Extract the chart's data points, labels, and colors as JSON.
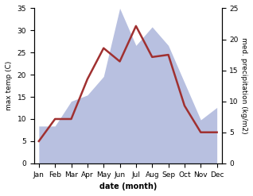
{
  "months": [
    "Jan",
    "Feb",
    "Mar",
    "Apr",
    "May",
    "Jun",
    "Jul",
    "Aug",
    "Sep",
    "Oct",
    "Nov",
    "Dec"
  ],
  "temp": [
    5,
    10,
    10,
    19,
    26,
    23,
    31,
    24,
    24.5,
    13,
    7,
    7
  ],
  "precip": [
    6,
    6,
    10,
    11,
    14,
    25,
    19,
    22,
    19,
    13,
    7,
    9
  ],
  "temp_color": "#a03030",
  "precip_color_fill": "#b8c0e0",
  "ylabel_left": "max temp (C)",
  "ylabel_right": "med. precipitation (kg/m2)",
  "xlabel": "date (month)",
  "ylim_left": [
    0,
    35
  ],
  "ylim_right": [
    0,
    25
  ],
  "yticks_left": [
    0,
    5,
    10,
    15,
    20,
    25,
    30,
    35
  ],
  "yticks_right": [
    0,
    5,
    10,
    15,
    20,
    25
  ],
  "background_color": "#ffffff"
}
